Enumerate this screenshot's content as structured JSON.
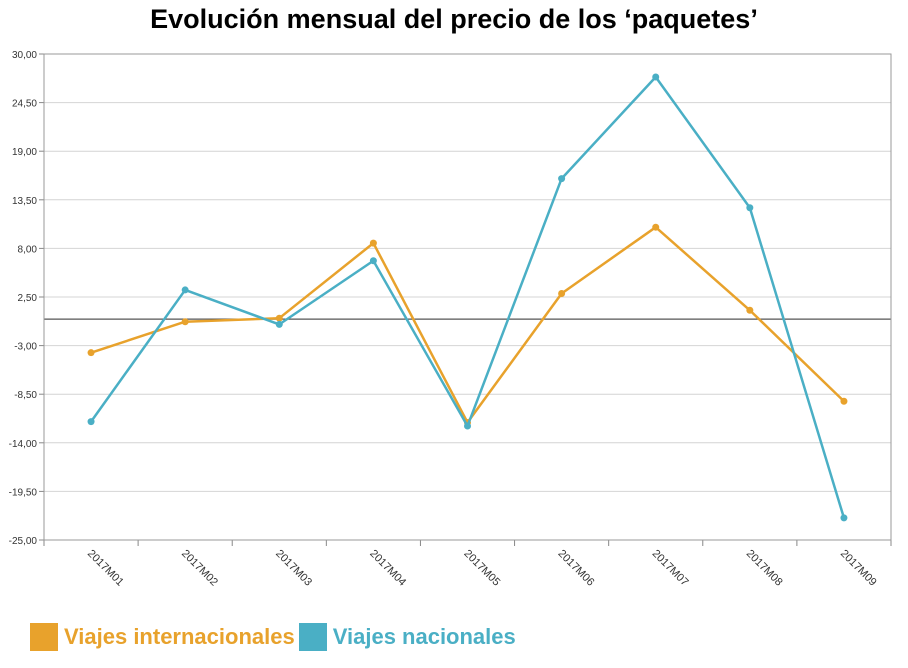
{
  "chart_data": {
    "type": "line",
    "title": "Evolución mensual del precio de los ‘paquetes’",
    "categories": [
      "2017M01",
      "2017M02",
      "2017M03",
      "2017M04",
      "2017M05",
      "2017M06",
      "2017M07",
      "2017M08",
      "2017M09"
    ],
    "y_ticks": [
      "30,00",
      "24,50",
      "19,00",
      "13,50",
      "8,00",
      "2,50",
      "-3,00",
      "-8,50",
      "-14,00",
      "-19,50",
      "-25,00"
    ],
    "y_tick_values": [
      30,
      24.5,
      19,
      13.5,
      8,
      2.5,
      -3,
      -8.5,
      -14,
      -19.5,
      -25
    ],
    "ylim": [
      -25,
      30
    ],
    "zero_line": 0,
    "grid": true,
    "legend_position": "bottom-left",
    "series": [
      {
        "name": "Viajes internacionales",
        "color": "#e8a22c",
        "values": [
          -3.8,
          -0.3,
          0.1,
          8.6,
          -11.7,
          2.9,
          10.4,
          1.0,
          -9.3
        ]
      },
      {
        "name": "Viajes nacionales",
        "color": "#4aafc5",
        "values": [
          -11.6,
          3.3,
          -0.6,
          6.6,
          -12.1,
          15.9,
          27.4,
          12.6,
          -22.5
        ]
      }
    ]
  }
}
